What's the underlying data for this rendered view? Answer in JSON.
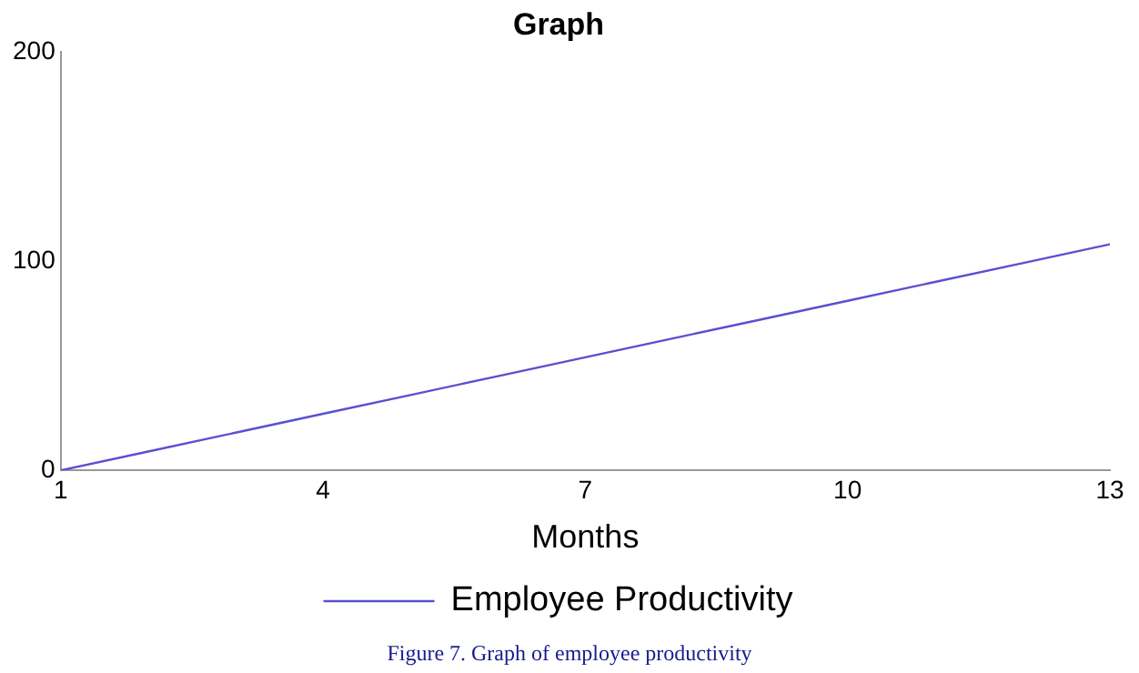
{
  "chart_data": {
    "type": "line",
    "title": "Graph",
    "xlabel": "Months",
    "x": [
      1,
      2,
      3,
      4,
      5,
      6,
      7,
      8,
      9,
      10,
      11,
      12,
      13
    ],
    "series": [
      {
        "name": "Employee Productivity",
        "color": "#5a50d0",
        "values": [
          0,
          9,
          18,
          27,
          36,
          45,
          54,
          63,
          72,
          81,
          90,
          99,
          108
        ]
      }
    ],
    "xlim": [
      1,
      13
    ],
    "xticks": [
      1,
      4,
      7,
      10,
      13
    ],
    "ylim": [
      0,
      200
    ],
    "yticks": [
      0,
      100,
      200
    ],
    "grid": false,
    "legend": "bottom",
    "marker": "none",
    "line_style": "solid",
    "annotations": [
      "Figure 7. Graph of employee productivity"
    ]
  }
}
